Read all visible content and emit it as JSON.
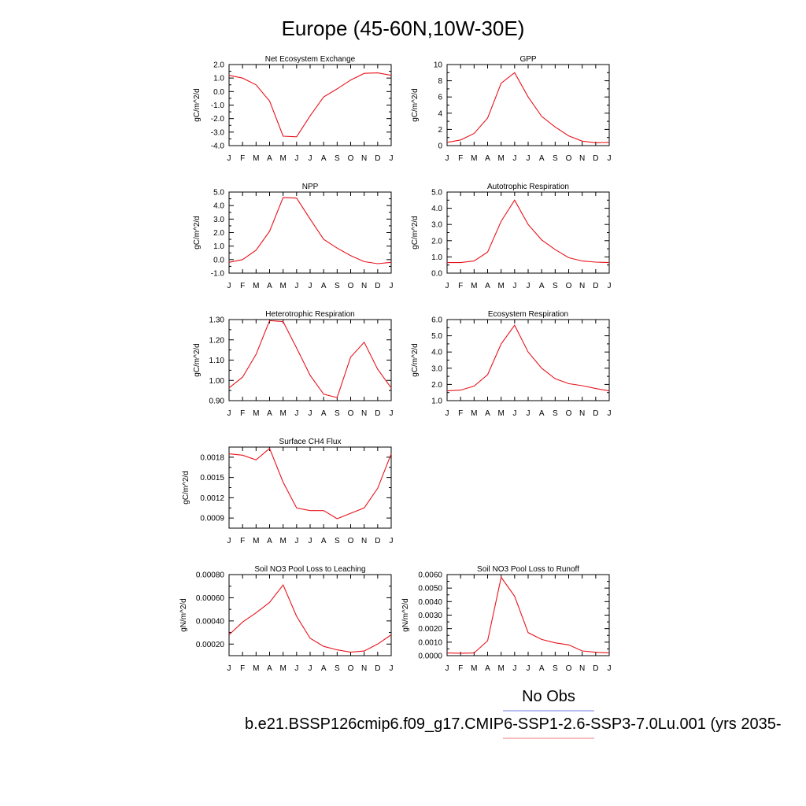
{
  "figure": {
    "title": "Europe (45-60N,10W-30E)",
    "legend": {
      "obs_label": "No Obs",
      "obs_color": "#6f7fe6",
      "model_label": "b.e21.BSSP126cmip6.f09_g17.CMIP6-SSP1-2.6-SSP3-7.0Lu.001 (yrs 2035-",
      "model_color": "#f07a7a"
    }
  },
  "style": {
    "line_color": "#e8131c",
    "axis_color": "#000000"
  },
  "chart_data": [
    {
      "type": "line",
      "title": "Net Ecosystem Exchange",
      "ylabel": "gC/m^2/d",
      "categories": [
        "J",
        "F",
        "M",
        "A",
        "M",
        "J",
        "J",
        "A",
        "S",
        "O",
        "N",
        "D",
        "J"
      ],
      "ylim": [
        -4.0,
        2.0
      ],
      "yticks": [
        2.0,
        1.0,
        0.0,
        -1.0,
        -2.0,
        -3.0,
        -4.0
      ],
      "ytick_labels": [
        "2.0",
        "1.0",
        "0.0",
        "-1.0",
        "-2.0",
        "-3.0",
        "-4.0"
      ],
      "values": [
        1.2,
        1.0,
        0.5,
        -0.7,
        -3.3,
        -3.35,
        -1.8,
        -0.4,
        0.2,
        0.85,
        1.35,
        1.38,
        1.2
      ]
    },
    {
      "type": "line",
      "title": "GPP",
      "ylabel": "gC/m^2/d",
      "categories": [
        "J",
        "F",
        "M",
        "A",
        "M",
        "J",
        "J",
        "A",
        "S",
        "O",
        "N",
        "D",
        "J"
      ],
      "ylim": [
        0,
        10
      ],
      "yticks": [
        10,
        8,
        6,
        4,
        2,
        0
      ],
      "ytick_labels": [
        "10",
        "8",
        "6",
        "4",
        "2",
        "0"
      ],
      "values": [
        0.4,
        0.7,
        1.5,
        3.4,
        7.7,
        9.0,
        6.0,
        3.6,
        2.3,
        1.2,
        0.55,
        0.35,
        0.4
      ]
    },
    {
      "type": "line",
      "title": "NPP",
      "ylabel": "gC/m^2/d",
      "categories": [
        "J",
        "F",
        "M",
        "A",
        "M",
        "J",
        "J",
        "A",
        "S",
        "O",
        "N",
        "D",
        "J"
      ],
      "ylim": [
        -1.0,
        5.0
      ],
      "yticks": [
        5.0,
        4.0,
        3.0,
        2.0,
        1.0,
        0.0,
        -1.0
      ],
      "ytick_labels": [
        "5.0",
        "4.0",
        "3.0",
        "2.0",
        "1.0",
        "0.0",
        "-1.0"
      ],
      "values": [
        -0.2,
        0.0,
        0.7,
        2.1,
        4.6,
        4.55,
        3.0,
        1.5,
        0.85,
        0.3,
        -0.15,
        -0.3,
        -0.2
      ]
    },
    {
      "type": "line",
      "title": "Autotrophic Respiration",
      "ylabel": "gC/m^2/d",
      "categories": [
        "J",
        "F",
        "M",
        "A",
        "M",
        "J",
        "J",
        "A",
        "S",
        "O",
        "N",
        "D",
        "J"
      ],
      "ylim": [
        0.0,
        5.0
      ],
      "yticks": [
        5.0,
        4.0,
        3.0,
        2.0,
        1.0,
        0.0
      ],
      "ytick_labels": [
        "5.0",
        "4.0",
        "3.0",
        "2.0",
        "1.0",
        "0.0"
      ],
      "values": [
        0.65,
        0.65,
        0.75,
        1.3,
        3.2,
        4.5,
        3.0,
        2.05,
        1.45,
        0.95,
        0.75,
        0.68,
        0.65
      ]
    },
    {
      "type": "line",
      "title": "Heterotrophic Respiration",
      "ylabel": "gC/m^2/d",
      "categories": [
        "J",
        "F",
        "M",
        "A",
        "M",
        "J",
        "J",
        "A",
        "S",
        "O",
        "N",
        "D",
        "J"
      ],
      "ylim": [
        0.9,
        1.3
      ],
      "yticks": [
        1.3,
        1.2,
        1.1,
        1.0,
        0.9
      ],
      "ytick_labels": [
        "1.30",
        "1.20",
        "1.10",
        "1.00",
        "0.90"
      ],
      "values": [
        0.963,
        1.016,
        1.128,
        1.295,
        1.29,
        1.16,
        1.025,
        0.932,
        0.915,
        1.115,
        1.188,
        1.055,
        0.963
      ]
    },
    {
      "type": "line",
      "title": "Ecosystem Respiration",
      "ylabel": "gC/m^2/d",
      "categories": [
        "J",
        "F",
        "M",
        "A",
        "M",
        "J",
        "J",
        "A",
        "S",
        "O",
        "N",
        "D",
        "J"
      ],
      "ylim": [
        1.0,
        6.0
      ],
      "yticks": [
        6.0,
        5.0,
        4.0,
        3.0,
        2.0,
        1.0
      ],
      "ytick_labels": [
        "6.0",
        "5.0",
        "4.0",
        "3.0",
        "2.0",
        "1.0"
      ],
      "values": [
        1.6,
        1.65,
        1.9,
        2.6,
        4.5,
        5.65,
        4.0,
        3.0,
        2.35,
        2.05,
        1.92,
        1.75,
        1.6
      ]
    },
    {
      "type": "line",
      "title": "Surface CH4 Flux",
      "ylabel": "gC/m^2/d",
      "categories": [
        "J",
        "F",
        "M",
        "A",
        "M",
        "J",
        "J",
        "A",
        "S",
        "O",
        "N",
        "D",
        "J"
      ],
      "ylim": [
        0.00075,
        0.00195
      ],
      "yticks": [
        0.0018,
        0.0015,
        0.0012,
        0.0009
      ],
      "ytick_labels": [
        "0.0018",
        "0.0015",
        "0.0012",
        "0.0009"
      ],
      "values": [
        0.00185,
        0.00183,
        0.00176,
        0.00193,
        0.00143,
        0.00105,
        0.00101,
        0.00101,
        0.00089,
        0.00097,
        0.00105,
        0.00134,
        0.00185
      ]
    },
    {
      "type": "line",
      "title": "Soil NO3 Pool Loss to Leaching",
      "ylabel": "gN/m^2/d",
      "categories": [
        "J",
        "F",
        "M",
        "A",
        "M",
        "J",
        "J",
        "A",
        "S",
        "O",
        "N",
        "D",
        "J"
      ],
      "ylim": [
        0.0001,
        0.0008
      ],
      "yticks": [
        0.0008,
        0.0006,
        0.0004,
        0.0002
      ],
      "ytick_labels": [
        "0.00080",
        "0.00060",
        "0.00040",
        "0.00020"
      ],
      "values": [
        0.00028,
        0.00039,
        0.00047,
        0.00056,
        0.00071,
        0.00044,
        0.00025,
        0.00018,
        0.00015,
        0.00013,
        0.00014,
        0.0002,
        0.00028
      ]
    },
    {
      "type": "line",
      "title": "Soil NO3 Pool Loss to Runoff",
      "ylabel": "gN/m^2/d",
      "categories": [
        "J",
        "F",
        "M",
        "A",
        "M",
        "J",
        "J",
        "A",
        "S",
        "O",
        "N",
        "D",
        "J"
      ],
      "ylim": [
        0.0,
        0.006
      ],
      "yticks": [
        0.006,
        0.005,
        0.004,
        0.003,
        0.002,
        0.001,
        0.0
      ],
      "ytick_labels": [
        "0.0060",
        "0.0050",
        "0.0040",
        "0.0030",
        "0.0020",
        "0.0010",
        "0.0000"
      ],
      "values": [
        0.0002,
        0.00018,
        0.0002,
        0.0011,
        0.0058,
        0.0044,
        0.0017,
        0.0012,
        0.00095,
        0.0008,
        0.00035,
        0.00025,
        0.0002
      ]
    }
  ]
}
